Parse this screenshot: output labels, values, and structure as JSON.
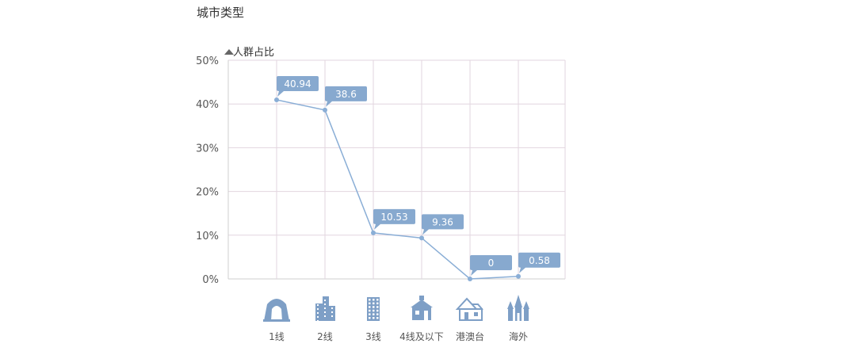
{
  "chart_data": {
    "type": "line",
    "title": "城市类型",
    "ylabel": "人群占比",
    "ylim": [
      0,
      50
    ],
    "yticks": [
      "0%",
      "10%",
      "20%",
      "30%",
      "40%",
      "50%"
    ],
    "ytick_values": [
      0,
      10,
      20,
      30,
      40,
      50
    ],
    "categories": [
      "1线",
      "2线",
      "3线",
      "4线及以下",
      "港澳台",
      "海外"
    ],
    "category_icons": [
      "gate-building-icon",
      "office-tower-icon",
      "apartment-block-icon",
      "small-house-icon",
      "house-icon",
      "church-icon"
    ],
    "values": [
      40.94,
      38.6,
      10.53,
      9.36,
      0,
      0.58
    ],
    "data_labels": [
      "40.94",
      "38.6",
      "10.53",
      "9.36",
      "0",
      "0.58"
    ],
    "grid": true,
    "colors": {
      "line": "#8aaed6",
      "label_bg": "#87a9cf",
      "grid": "#e2d6df",
      "axis": "#cfcfcf",
      "icon": "#7e9fc6"
    }
  }
}
